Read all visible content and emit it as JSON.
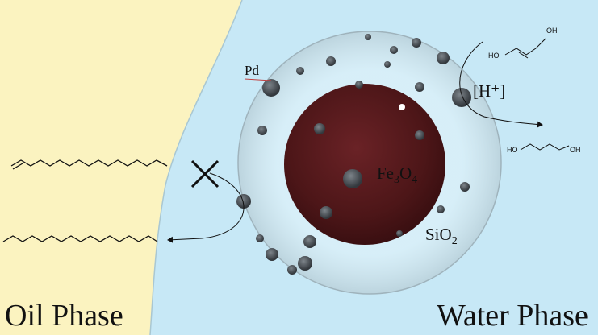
{
  "labels": {
    "pd": "Pd",
    "h_plus": "[H⁺]",
    "core_fe": "Fe",
    "core_sub3": "3",
    "core_o": "O",
    "core_sub4": "4",
    "shell_si": "SiO",
    "shell_sub2": "2",
    "oil_phase": "Oil Phase",
    "water_phase": "Water Phase",
    "ho_1": "HO",
    "oh_1": "OH",
    "ho_2": "HO",
    "oh_2": "OH"
  },
  "colors": {
    "oil_phase": "#fbf3c0",
    "water_phase": "#c7e8f6",
    "core": "#5a1b1d",
    "shell": "#d6eef6",
    "particle": "#4a4f55",
    "text": "#111111"
  },
  "icons": {
    "blocked_marker": "cross-icon"
  }
}
